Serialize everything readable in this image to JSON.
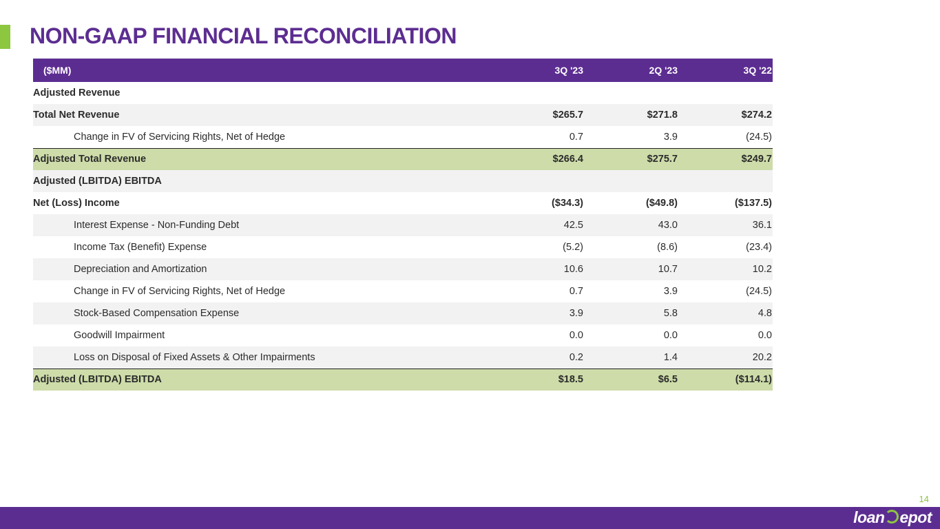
{
  "page": {
    "title": "NON-GAAP FINANCIAL RECONCILIATION",
    "page_number": "14"
  },
  "brand": {
    "logo_left": "loan",
    "logo_right": "epot",
    "primary_color": "#5c2d91",
    "accent_color": "#8dc63f",
    "total_row_color": "#cddca9"
  },
  "table": {
    "columns": [
      "($MM)",
      "3Q '23",
      "2Q '23",
      "3Q '22"
    ],
    "rows": [
      {
        "label": "Adjusted Revenue",
        "values": [
          "",
          "",
          ""
        ]
      },
      {
        "label": "Total Net Revenue",
        "values": [
          "$265.7",
          "$271.8",
          "$274.2"
        ]
      },
      {
        "label": "Change in FV of Servicing Rights, Net of Hedge",
        "values": [
          "0.7",
          "3.9",
          "(24.5)"
        ]
      },
      {
        "label": "Adjusted Total Revenue",
        "values": [
          "$266.4",
          "$275.7",
          "$249.7"
        ]
      },
      {
        "label": "Adjusted (LBITDA) EBITDA",
        "values": [
          "",
          "",
          ""
        ]
      },
      {
        "label": "Net (Loss) Income",
        "values": [
          "($34.3)",
          "($49.8)",
          "($137.5)"
        ]
      },
      {
        "label": "Interest Expense - Non-Funding Debt",
        "values": [
          "42.5",
          "43.0",
          "36.1"
        ]
      },
      {
        "label": "Income Tax (Benefit) Expense",
        "values": [
          "(5.2)",
          "(8.6)",
          "(23.4)"
        ]
      },
      {
        "label": "Depreciation and Amortization",
        "values": [
          "10.6",
          "10.7",
          "10.2"
        ]
      },
      {
        "label": "Change in FV of Servicing Rights, Net of Hedge",
        "values": [
          "0.7",
          "3.9",
          "(24.5)"
        ]
      },
      {
        "label": "Stock-Based Compensation Expense",
        "values": [
          "3.9",
          "5.8",
          "4.8"
        ]
      },
      {
        "label": "Goodwill Impairment",
        "values": [
          "0.0",
          "0.0",
          "0.0"
        ]
      },
      {
        "label": "Loss on Disposal of Fixed Assets & Other Impairments",
        "values": [
          "0.2",
          "1.4",
          "20.2"
        ]
      },
      {
        "label": "Adjusted (LBITDA) EBITDA",
        "values": [
          "$18.5",
          "$6.5",
          "($114.1)"
        ]
      }
    ]
  }
}
